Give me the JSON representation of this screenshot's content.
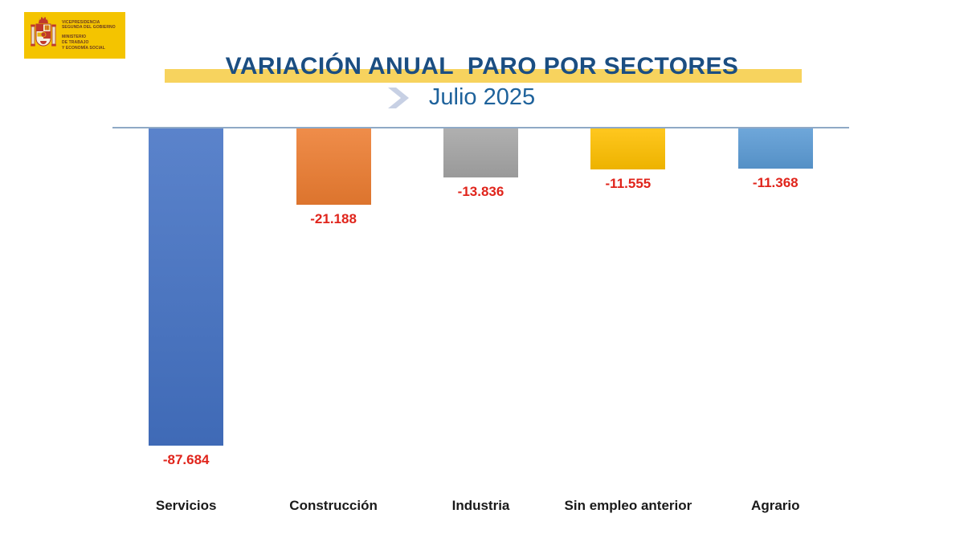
{
  "logo": {
    "department_lines": [
      "VICEPRESIDENCIA",
      "SEGUNDA DEL GOBIERNO"
    ],
    "ministry_lines": [
      "MINISTERIO",
      "DE TRABAJO",
      "Y ECONOMÍA SOCIAL"
    ],
    "bg_color": "#F4C400",
    "text_color": "#6B3B20"
  },
  "header": {
    "title": "VARIACIÓN ANUAL  PARO POR SECTORES",
    "subtitle": "Julio 2025",
    "title_color": "#1B4E82",
    "subtitle_color": "#1E629B",
    "highlight_color": "#F7D35E",
    "chevron_color": "#C7D0E4"
  },
  "chart_data": {
    "type": "bar",
    "title": "VARIACIÓN ANUAL PARO POR SECTORES",
    "subtitle": "Julio 2025",
    "categories": [
      "Servicios",
      "Construcción",
      "Industria",
      "Sin empleo anterior",
      "Agrario"
    ],
    "values": [
      -87684,
      -21188,
      -13836,
      -11555,
      -11368
    ],
    "value_labels": [
      "-87.684",
      "-21.188",
      "-13.836",
      "-11.555",
      "-11.368"
    ],
    "bar_colors": [
      "#4472C4",
      "#ED7D31",
      "#A5A5A5",
      "#FFC000",
      "#5B9BD5"
    ],
    "value_label_color": "#E0241B",
    "category_label_color": "#1A1A1A",
    "axis_color": "#8FA9C6",
    "ylim": [
      -90000,
      0
    ],
    "grid": false,
    "legend": false,
    "orientation": "vertical-negative"
  }
}
